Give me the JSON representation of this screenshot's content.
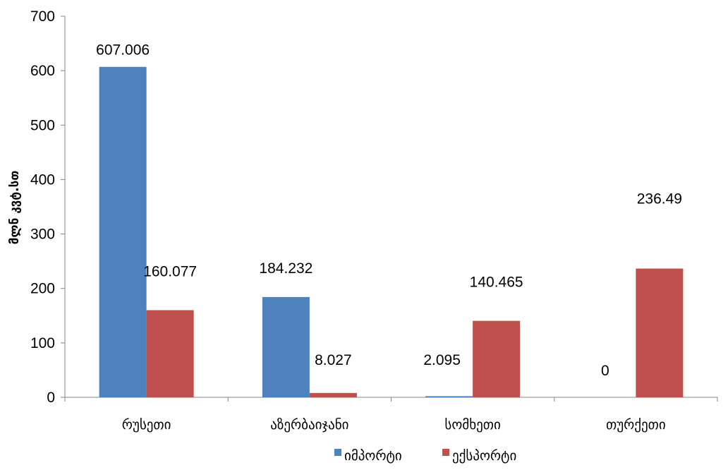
{
  "chart_data": {
    "type": "bar",
    "categories": [
      "რუსეთი",
      "აზერბაიჯანი",
      "სომხეთი",
      "თურქეთი"
    ],
    "series": [
      {
        "name": "იმპორტი",
        "color": "#4f81bd",
        "values": [
          607.006,
          184.232,
          2.095,
          0
        ]
      },
      {
        "name": "ექსპორტი",
        "color": "#c0504d",
        "values": [
          160.077,
          8.027,
          140.465,
          236.49
        ]
      }
    ],
    "data_labels": [
      [
        "607.006",
        "184.232",
        "2.095",
        "0"
      ],
      [
        "160.077",
        "8.027",
        "140.465",
        "236.49"
      ]
    ],
    "ylabel": "მლნ კვტ.სთ",
    "ylim": [
      0,
      700
    ],
    "yticks": [
      0,
      100,
      200,
      300,
      400,
      500,
      600,
      700
    ],
    "grid": false,
    "legend_position": "bottom"
  }
}
